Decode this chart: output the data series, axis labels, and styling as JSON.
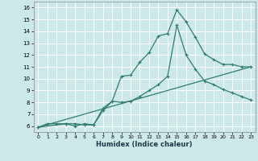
{
  "xlabel": "Humidex (Indice chaleur)",
  "xlim": [
    -0.5,
    23.5
  ],
  "ylim": [
    5.5,
    16.5
  ],
  "xticks": [
    0,
    1,
    2,
    3,
    4,
    5,
    6,
    7,
    8,
    9,
    10,
    11,
    12,
    13,
    14,
    15,
    16,
    17,
    18,
    19,
    20,
    21,
    22,
    23
  ],
  "yticks": [
    6,
    7,
    8,
    9,
    10,
    11,
    12,
    13,
    14,
    15,
    16
  ],
  "bg_color": "#cde8e8",
  "grid_color": "#ffffff",
  "line_color": "#2e7d6e",
  "line1_x": [
    0,
    1,
    2,
    3,
    4,
    5,
    6,
    7,
    8,
    9,
    10,
    11,
    12,
    13,
    14,
    15,
    16,
    17,
    18,
    19,
    20,
    21,
    22,
    23
  ],
  "line1_y": [
    5.9,
    6.2,
    6.2,
    6.2,
    6.2,
    6.1,
    6.1,
    7.5,
    8.1,
    10.2,
    10.3,
    11.4,
    12.2,
    13.6,
    13.8,
    15.8,
    14.8,
    13.5,
    12.1,
    11.6,
    11.2,
    11.2,
    11.0,
    11.0
  ],
  "line2_x": [
    0,
    3,
    4,
    5,
    6,
    7,
    8,
    9,
    10,
    11,
    12,
    13,
    14,
    15,
    16,
    17,
    18,
    19,
    20,
    21,
    22,
    23
  ],
  "line2_y": [
    5.9,
    6.2,
    6.0,
    6.2,
    6.1,
    7.3,
    8.1,
    8.0,
    8.1,
    8.5,
    9.0,
    9.5,
    10.2,
    14.5,
    12.0,
    10.8,
    9.8,
    9.5,
    9.1,
    8.8,
    8.5,
    8.2
  ],
  "line3_x": [
    0,
    23
  ],
  "line3_y": [
    5.9,
    11.0
  ]
}
